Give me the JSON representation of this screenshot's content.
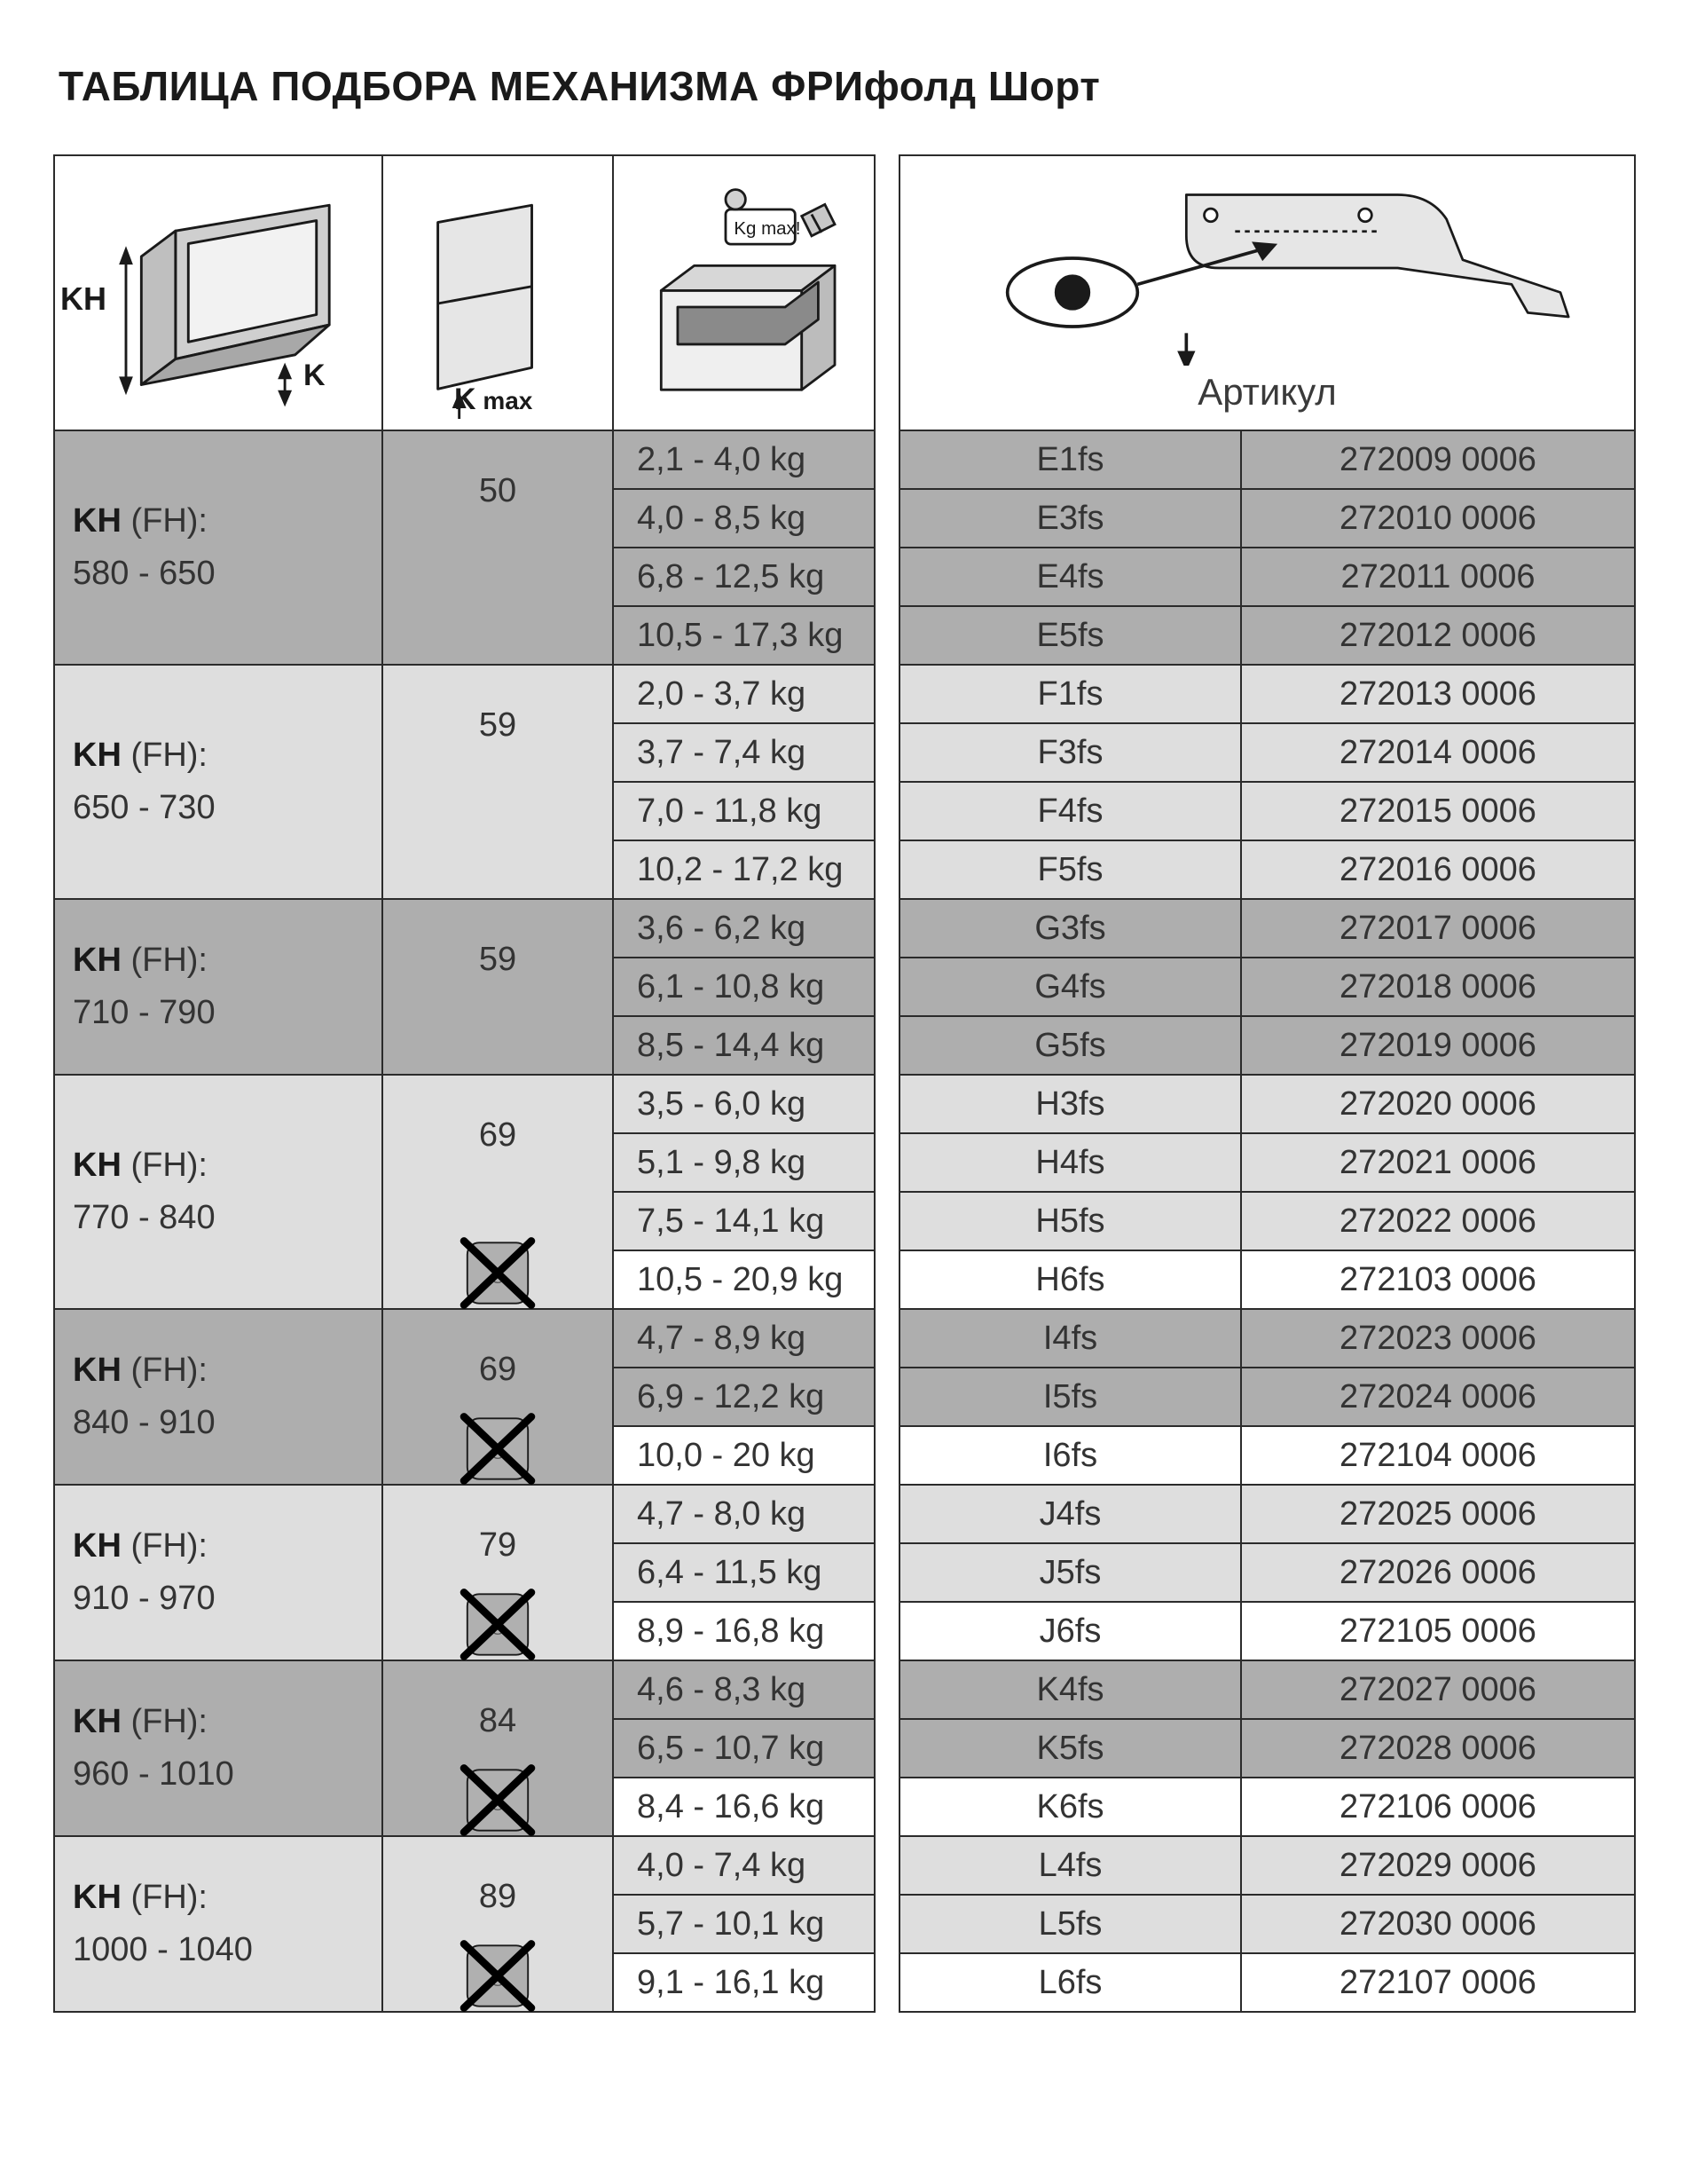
{
  "title": "ТАБЛИЦА ПОДБОРА МЕХАНИЗМА ФРИфолд Шорт",
  "header": {
    "kh_symbol": "KH",
    "k_symbol": "K",
    "kmax_symbol_prefix": "K",
    "kmax_symbol_suffix": " max",
    "kg_max_label": "Kg  max !",
    "article_label": "Артикул"
  },
  "colors": {
    "dark": "#aeaeae",
    "light": "#dedede",
    "white": "#ffffff",
    "line": "#2b2b2b",
    "text": "#333333"
  },
  "groups": [
    {
      "kh_label_bold": "KH",
      "kh_label_rest": " (FH):",
      "kh_range": "580 - 650",
      "kmax": "50",
      "kmax_cross": false,
      "shade": "dark",
      "rows": [
        {
          "weight": "2,1 - 4,0 kg",
          "code": "E1fs",
          "article": "272009 0006",
          "white": false
        },
        {
          "weight": "4,0 - 8,5 kg",
          "code": "E3fs",
          "article": "272010 0006",
          "white": false
        },
        {
          "weight": "6,8 - 12,5 kg",
          "code": "E4fs",
          "article": "272011 0006",
          "white": false
        },
        {
          "weight": "10,5 - 17,3 kg",
          "code": "E5fs",
          "article": "272012 0006",
          "white": false
        }
      ]
    },
    {
      "kh_label_bold": "KH",
      "kh_label_rest": " (FH):",
      "kh_range": "650 - 730",
      "kmax": "59",
      "kmax_cross": false,
      "shade": "light",
      "rows": [
        {
          "weight": "2,0 - 3,7 kg",
          "code": "F1fs",
          "article": "272013 0006",
          "white": false
        },
        {
          "weight": "3,7 - 7,4 kg",
          "code": "F3fs",
          "article": "272014 0006",
          "white": false
        },
        {
          "weight": "7,0 - 11,8 kg",
          "code": "F4fs",
          "article": "272015 0006",
          "white": false
        },
        {
          "weight": "10,2 - 17,2 kg",
          "code": "F5fs",
          "article": "272016 0006",
          "white": false
        }
      ]
    },
    {
      "kh_label_bold": "KH",
      "kh_label_rest": " (FH):",
      "kh_range": "710 - 790",
      "kmax": "59",
      "kmax_cross": false,
      "shade": "dark",
      "rows": [
        {
          "weight": "3,6 - 6,2 kg",
          "code": "G3fs",
          "article": "272017 0006",
          "white": false
        },
        {
          "weight": "6,1 - 10,8 kg",
          "code": "G4fs",
          "article": "272018 0006",
          "white": false
        },
        {
          "weight": "8,5 - 14,4 kg",
          "code": "G5fs",
          "article": "272019 0006",
          "white": false
        }
      ]
    },
    {
      "kh_label_bold": "KH",
      "kh_label_rest": " (FH):",
      "kh_range": "770 - 840",
      "kmax": "69",
      "kmax_cross": true,
      "shade": "light",
      "rows": [
        {
          "weight": "3,5 - 6,0 kg",
          "code": "H3fs",
          "article": "272020 0006",
          "white": false
        },
        {
          "weight": "5,1 - 9,8 kg",
          "code": "H4fs",
          "article": "272021 0006",
          "white": false
        },
        {
          "weight": "7,5 - 14,1 kg",
          "code": "H5fs",
          "article": "272022 0006",
          "white": false
        },
        {
          "weight": "10,5 - 20,9 kg",
          "code": "H6fs",
          "article": "272103 0006",
          "white": true
        }
      ]
    },
    {
      "kh_label_bold": "KH",
      "kh_label_rest": " (FH):",
      "kh_range": "840 - 910",
      "kmax": "69",
      "kmax_cross": true,
      "shade": "dark",
      "rows": [
        {
          "weight": "4,7 - 8,9 kg",
          "code": "I4fs",
          "article": "272023 0006",
          "white": false
        },
        {
          "weight": "6,9 - 12,2 kg",
          "code": "I5fs",
          "article": "272024 0006",
          "white": false
        },
        {
          "weight": "10,0 - 20 kg",
          "code": "I6fs",
          "article": "272104 0006",
          "white": true
        }
      ]
    },
    {
      "kh_label_bold": "KH",
      "kh_label_rest": " (FH):",
      "kh_range": "910 - 970",
      "kmax": "79",
      "kmax_cross": true,
      "shade": "light",
      "rows": [
        {
          "weight": "4,7 - 8,0 kg",
          "code": "J4fs",
          "article": "272025 0006",
          "white": false
        },
        {
          "weight": "6,4 - 11,5 kg",
          "code": "J5fs",
          "article": "272026 0006",
          "white": false
        },
        {
          "weight": "8,9 - 16,8 kg",
          "code": "J6fs",
          "article": "272105 0006",
          "white": true
        }
      ]
    },
    {
      "kh_label_bold": "KH",
      "kh_label_rest": " (FH):",
      "kh_range": "960 - 1010",
      "kmax": "84",
      "kmax_cross": true,
      "shade": "dark",
      "rows": [
        {
          "weight": "4,6 - 8,3 kg",
          "code": "K4fs",
          "article": "272027 0006",
          "white": false
        },
        {
          "weight": "6,5 - 10,7 kg",
          "code": "K5fs",
          "article": "272028 0006",
          "white": false
        },
        {
          "weight": "8,4 - 16,6 kg",
          "code": "K6fs",
          "article": "272106 0006",
          "white": true
        }
      ]
    },
    {
      "kh_label_bold": "KH",
      "kh_label_rest": " (FH):",
      "kh_range": "1000 - 1040",
      "kmax": "89",
      "kmax_cross": true,
      "shade": "light",
      "rows": [
        {
          "weight": "4,0 - 7,4 kg",
          "code": "L4fs",
          "article": "272029 0006",
          "white": false
        },
        {
          "weight": "5,7 - 10,1 kg",
          "code": "L5fs",
          "article": "272030 0006",
          "white": false
        },
        {
          "weight": "9,1 - 16,1 kg",
          "code": "L6fs",
          "article": "272107 0006",
          "white": true
        }
      ]
    }
  ]
}
